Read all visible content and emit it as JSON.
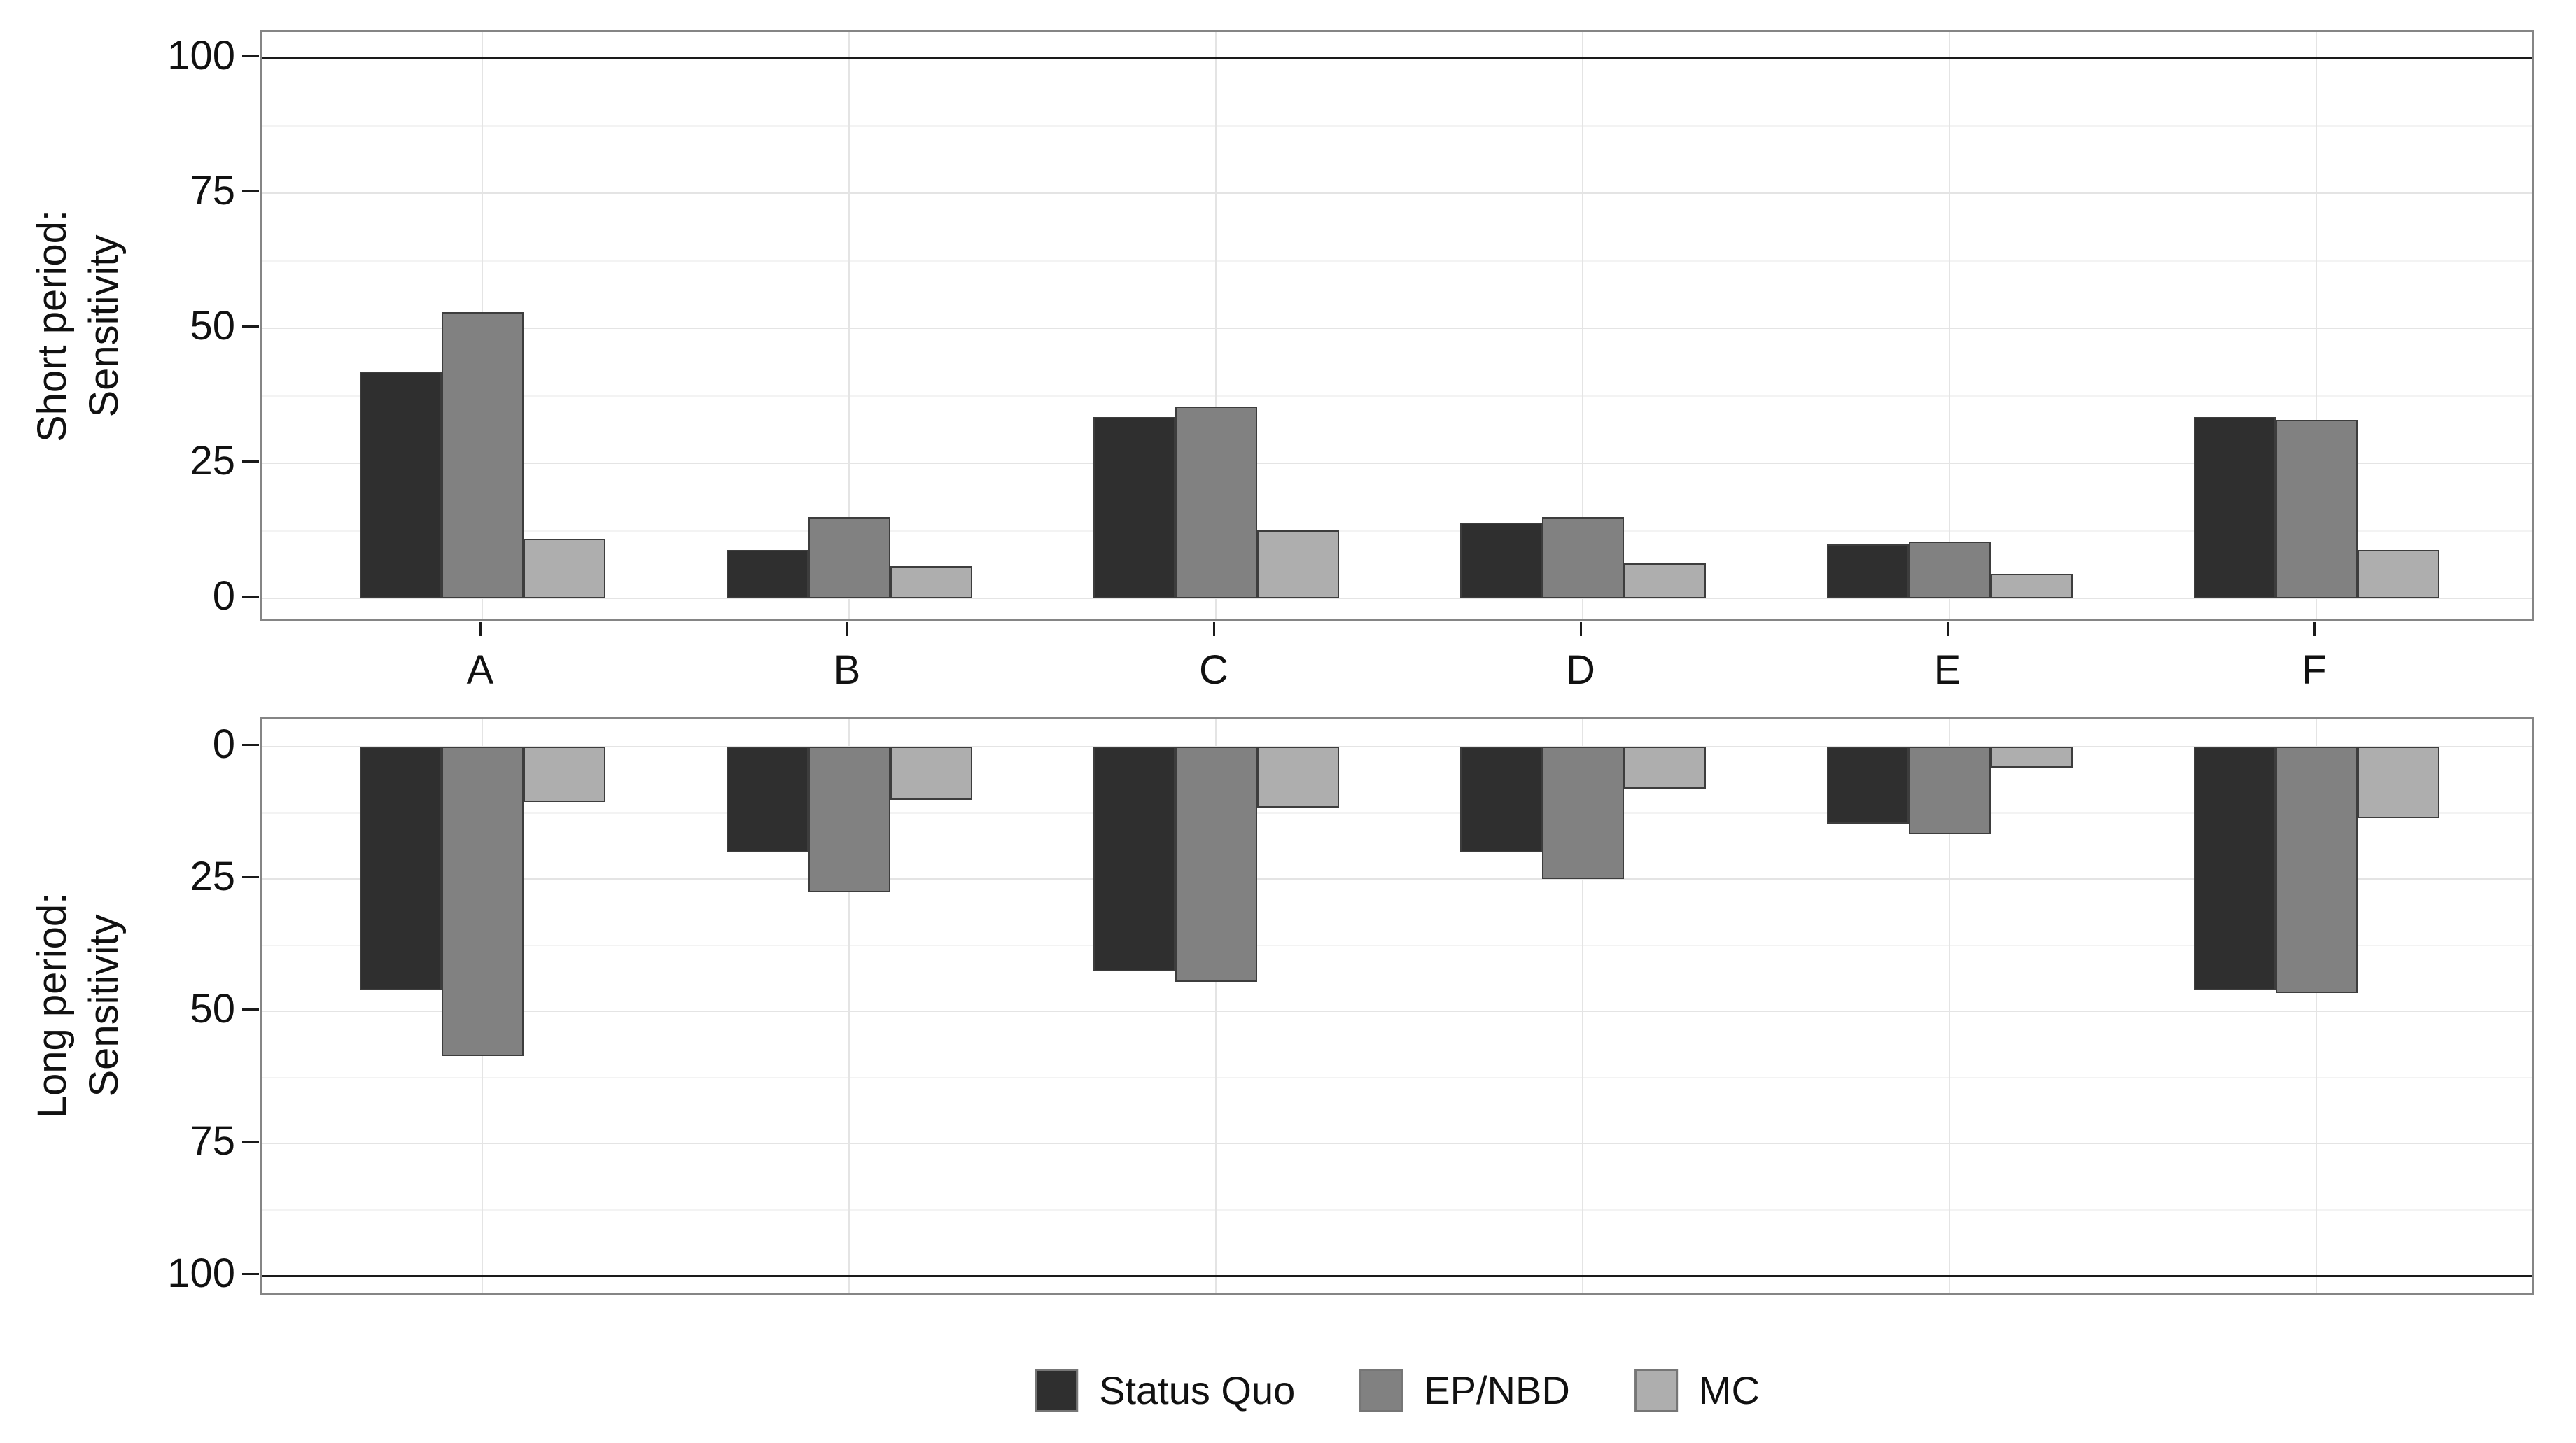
{
  "chart_data": {
    "type": "bar",
    "title": "",
    "categories": [
      "A",
      "B",
      "C",
      "D",
      "E",
      "F"
    ],
    "ylim": [
      0,
      100
    ],
    "grid": {
      "major": [
        0,
        25,
        50,
        75,
        100
      ],
      "minor": [
        12.5,
        37.5,
        62.5,
        87.5
      ],
      "vertical_at_categories": true
    },
    "legend_position": "bottom",
    "legend": [
      {
        "label": "Status Quo",
        "color": "#2f2f2f"
      },
      {
        "label": "EP/NBD",
        "color": "#818181"
      },
      {
        "label": "MC",
        "color": "#aeaeae"
      }
    ],
    "panels": [
      {
        "id": "short",
        "ylabel_line1": "Short period:",
        "ylabel_line2": "Sensitivity",
        "direction": "up",
        "yticks": [
          100,
          75,
          50,
          25,
          0
        ],
        "reference_line": 100,
        "series": [
          {
            "name": "Status Quo",
            "values": [
              42,
              9,
              33.5,
              14,
              10,
              33.5
            ]
          },
          {
            "name": "EP/NBD",
            "values": [
              53,
              15,
              35.5,
              15,
              10.5,
              33
            ]
          },
          {
            "name": "MC",
            "values": [
              11,
              6,
              12.5,
              6.5,
              4.5,
              9
            ]
          }
        ]
      },
      {
        "id": "long",
        "ylabel_line1": "Long period:",
        "ylabel_line2": "Sensitivity",
        "direction": "down",
        "yticks": [
          0,
          25,
          50,
          75,
          100
        ],
        "reference_line": 100,
        "series": [
          {
            "name": "Status Quo",
            "values": [
              46,
              20,
              42.5,
              20,
              14.5,
              46
            ]
          },
          {
            "name": "EP/NBD",
            "values": [
              58.5,
              27.5,
              44.5,
              25,
              16.5,
              46.5
            ]
          },
          {
            "name": "MC",
            "values": [
              10.5,
              10,
              11.5,
              8,
              4,
              13.5
            ]
          }
        ]
      }
    ]
  }
}
